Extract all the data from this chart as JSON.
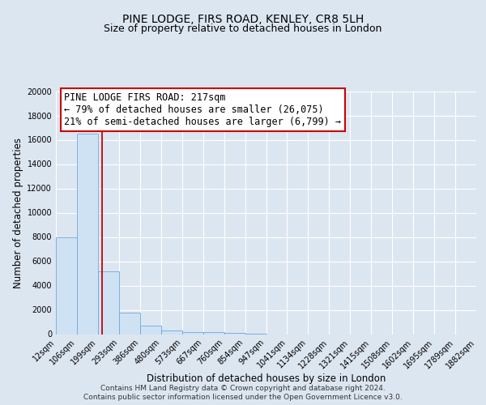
{
  "title": "PINE LODGE, FIRS ROAD, KENLEY, CR8 5LH",
  "subtitle": "Size of property relative to detached houses in London",
  "xlabel": "Distribution of detached houses by size in London",
  "ylabel": "Number of detached properties",
  "bin_labels": [
    "12sqm",
    "106sqm",
    "199sqm",
    "293sqm",
    "386sqm",
    "480sqm",
    "573sqm",
    "667sqm",
    "760sqm",
    "854sqm",
    "947sqm",
    "1041sqm",
    "1134sqm",
    "1228sqm",
    "1321sqm",
    "1415sqm",
    "1508sqm",
    "1602sqm",
    "1695sqm",
    "1789sqm",
    "1882sqm"
  ],
  "bar_heights": [
    8000,
    16500,
    5200,
    1800,
    700,
    300,
    200,
    150,
    100,
    50,
    0,
    0,
    0,
    0,
    0,
    0,
    0,
    0,
    0,
    0
  ],
  "bar_color": "#cfe2f3",
  "bar_edge_color": "#6fa8dc",
  "vline_color": "#cc0000",
  "annotation_title": "PINE LODGE FIRS ROAD: 217sqm",
  "annotation_line1": "← 79% of detached houses are smaller (26,075)",
  "annotation_line2": "21% of semi-detached houses are larger (6,799) →",
  "annotation_box_color": "#ffffff",
  "annotation_box_edge": "#cc0000",
  "ylim": [
    0,
    20000
  ],
  "yticks": [
    0,
    2000,
    4000,
    6000,
    8000,
    10000,
    12000,
    14000,
    16000,
    18000,
    20000
  ],
  "footer1": "Contains HM Land Registry data © Crown copyright and database right 2024.",
  "footer2": "Contains public sector information licensed under the Open Government Licence v3.0.",
  "bg_color": "#dce6f1",
  "plot_bg_color": "#dce6f1",
  "grid_color": "#ffffff",
  "title_fontsize": 10,
  "subtitle_fontsize": 9,
  "axis_label_fontsize": 8.5,
  "tick_fontsize": 7,
  "footer_fontsize": 6.5,
  "annotation_fontsize": 8.5
}
